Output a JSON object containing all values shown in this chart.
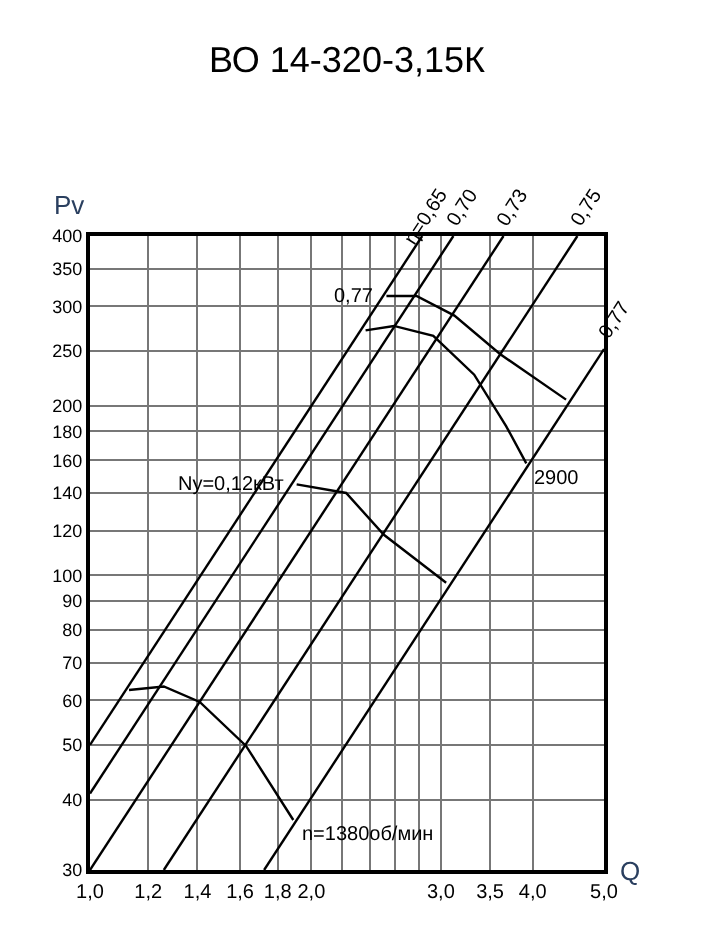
{
  "chart_data": {
    "type": "line",
    "title": "ВО 14-320-3,15К",
    "xlabel": "Q",
    "ylabel": "Pv",
    "log": "xy",
    "grid": true,
    "legend": false,
    "marker": "none",
    "line_style": "solid",
    "xlim": [
      1.0,
      5.0
    ],
    "ylim": [
      30,
      400
    ],
    "xticks": [
      {
        "value": 1.0,
        "label": "1,0"
      },
      {
        "value": 1.2,
        "label": "1,2"
      },
      {
        "value": 1.4,
        "label": "1,4"
      },
      {
        "value": 1.6,
        "label": "1,6"
      },
      {
        "value": 1.8,
        "label": "1,8"
      },
      {
        "value": 2.0,
        "label": "2,0"
      },
      {
        "value": 2.2,
        "label": null
      },
      {
        "value": 2.4,
        "label": null
      },
      {
        "value": 2.6,
        "label": null
      },
      {
        "value": 2.8,
        "label": null
      },
      {
        "value": 3.0,
        "label": "3,0"
      },
      {
        "value": 3.5,
        "label": "3,5"
      },
      {
        "value": 4.0,
        "label": "4,0"
      },
      {
        "value": 5.0,
        "label": "5,0"
      }
    ],
    "yticks": [
      30,
      40,
      50,
      60,
      70,
      80,
      90,
      100,
      120,
      140,
      160,
      180,
      200,
      250,
      300,
      350,
      400
    ],
    "series": [
      {
        "color": "#000000",
        "x": [
          2.53,
          2.78,
          3.13,
          3.61,
          4.44
        ],
        "values": [
          313,
          313,
          289,
          247,
          205
        ]
      },
      {
        "color": "#000000",
        "x": [
          2.37,
          2.59,
          2.93,
          3.33,
          3.68,
          3.92
        ],
        "values": [
          272,
          277,
          266,
          227,
          184,
          158
        ]
      },
      {
        "color": "#000000",
        "x": [
          1.91,
          2.23,
          2.51,
          3.05
        ],
        "values": [
          145,
          140,
          118,
          97
        ]
      },
      {
        "color": "#000000",
        "x": [
          1.13,
          1.26,
          1.41,
          1.63,
          1.89
        ],
        "values": [
          62.6,
          63.5,
          59.6,
          49.8,
          36.8
        ]
      },
      {
        "name": "η=0,65",
        "color": "#000000",
        "x": [
          1.0,
          2.83
        ],
        "values": [
          50,
          400
        ]
      },
      {
        "name": "0,70",
        "color": "#000000",
        "x": [
          1.0,
          3.12
        ],
        "values": [
          41,
          400
        ]
      },
      {
        "name": "0,73",
        "color": "#000000",
        "x": [
          1.0,
          3.65
        ],
        "values": [
          30,
          400
        ]
      },
      {
        "name": "0,75",
        "color": "#000000",
        "x": [
          1.26,
          4.6
        ],
        "values": [
          30,
          400
        ]
      },
      {
        "name": "0,77",
        "color": "#000000",
        "x": [
          1.725,
          5.0
        ],
        "values": [
          30,
          252
        ]
      }
    ],
    "annotations": [
      {
        "text": "0,77",
        "x": 2.53,
        "y": 313
      },
      {
        "text": "Nу=0,12кВт",
        "x": 1.91,
        "y": 145
      },
      {
        "text": "2900",
        "x": 3.92,
        "y": 158
      },
      {
        "text": "n=1380об/мин",
        "x": 1.89,
        "y": 36.8
      }
    ]
  }
}
